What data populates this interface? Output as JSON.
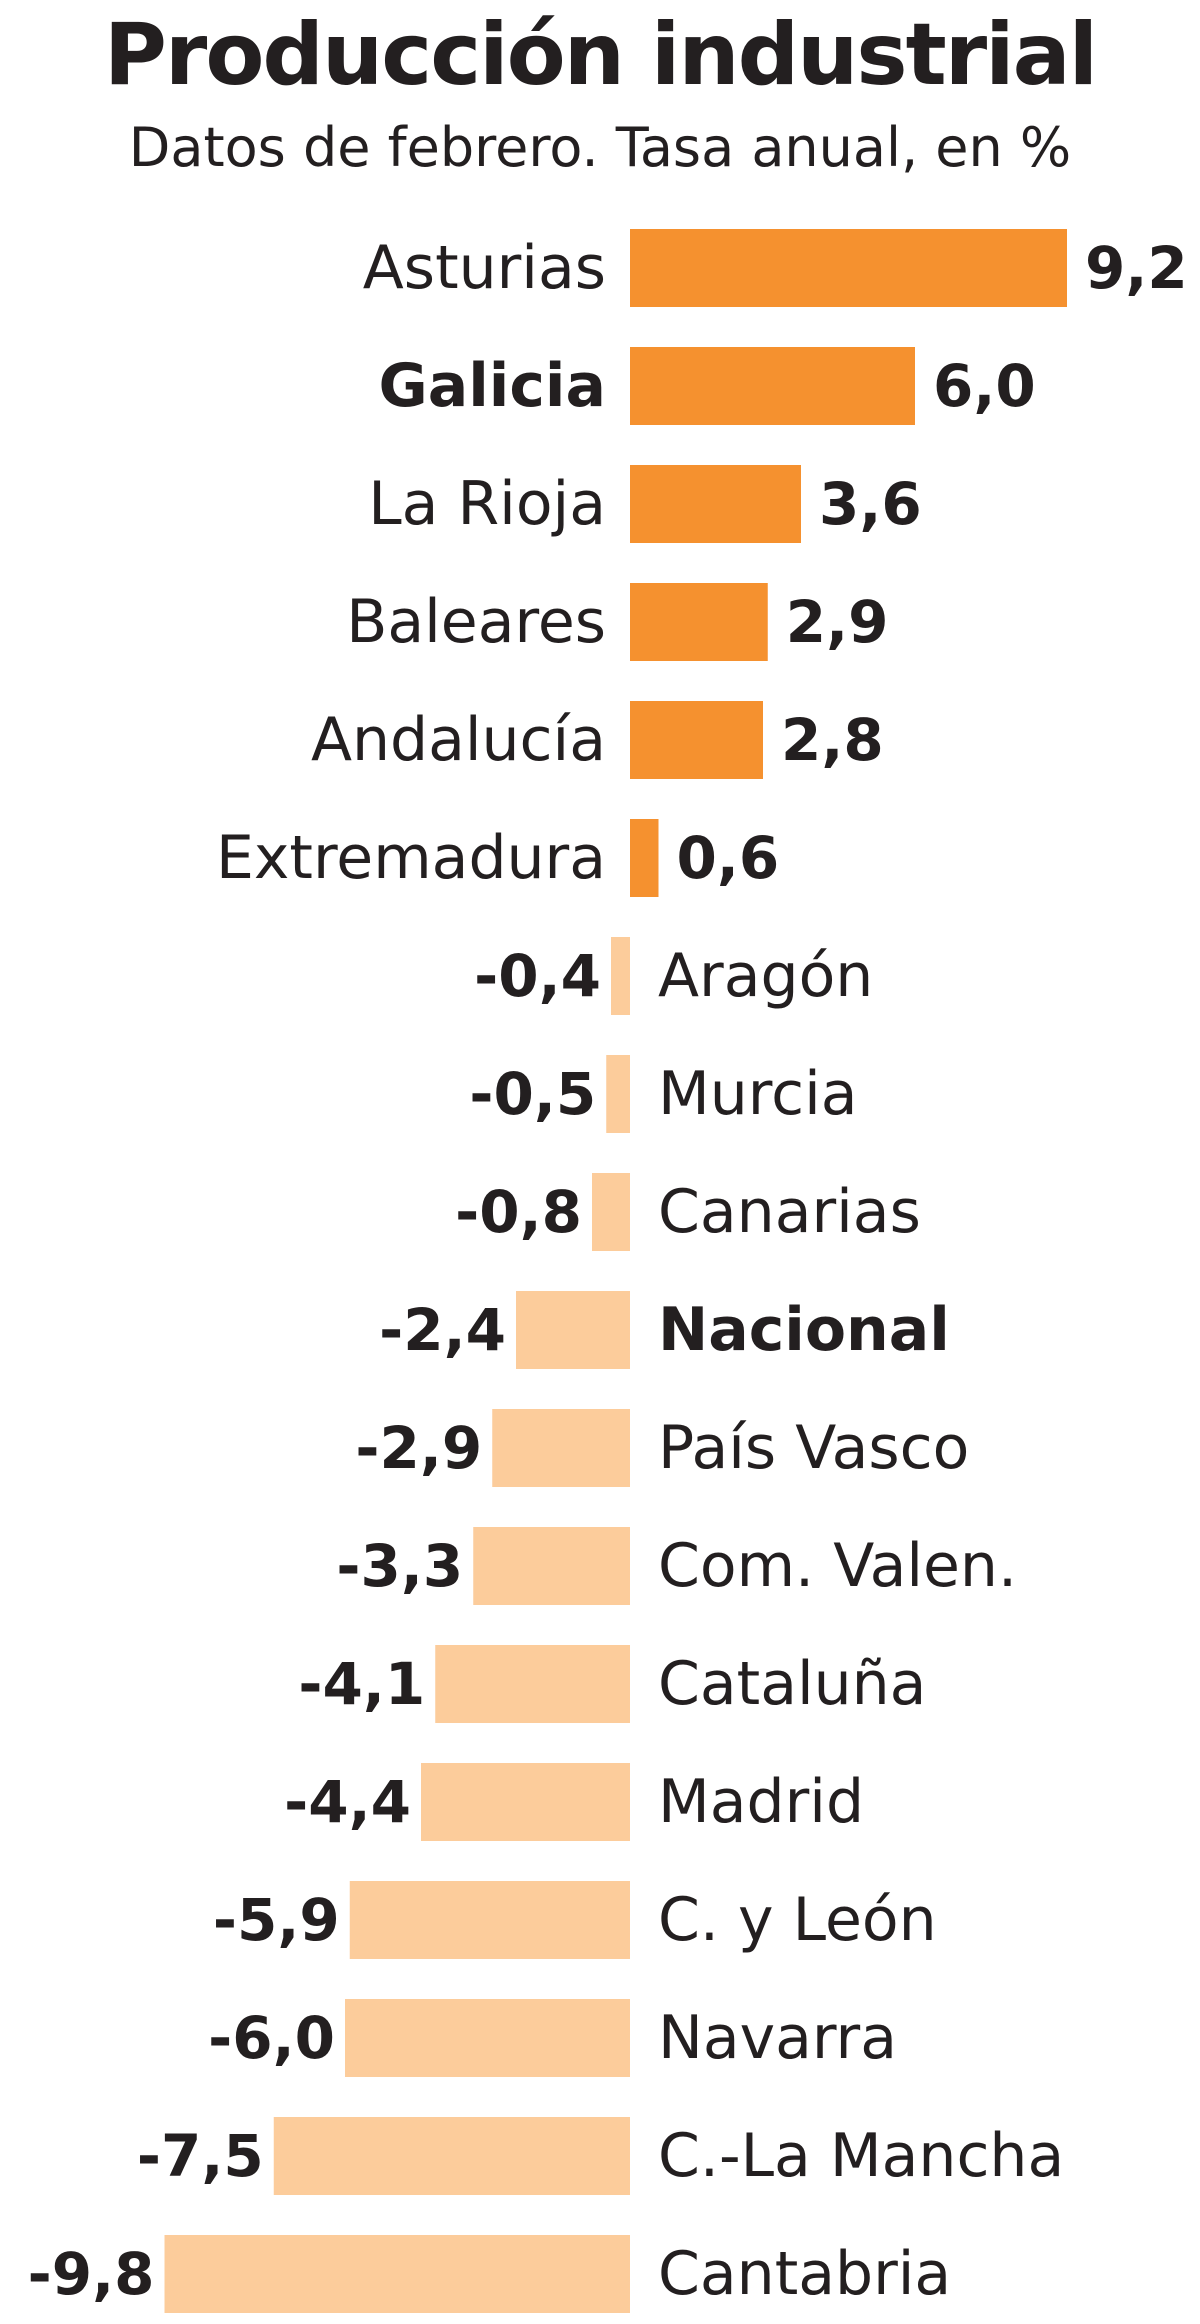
{
  "title": "Producción industrial",
  "subtitle": "Datos de febrero. Tasa anual, en %",
  "colors": {
    "positive": "#f5912f",
    "negative": "#fccc9b",
    "text": "#231f20"
  },
  "chart_data": {
    "type": "bar",
    "orientation": "horizontal",
    "title": "Producción industrial",
    "subtitle": "Datos de febrero. Tasa anual, en %",
    "categories": [
      "Asturias",
      "Galicia",
      "La Rioja",
      "Baleares",
      "Andalucía",
      "Extremadura",
      "Aragón",
      "Murcia",
      "Canarias",
      "Nacional",
      "País Vasco",
      "Com. Valen.",
      "Cataluña",
      "Madrid",
      "C. y León",
      "Navarra",
      "C.-La Mancha",
      "Cantabria"
    ],
    "values": [
      9.2,
      6.0,
      3.6,
      2.9,
      2.8,
      0.6,
      -0.4,
      -0.5,
      -0.8,
      -2.4,
      -2.9,
      -3.3,
      -4.1,
      -4.4,
      -5.9,
      -6.0,
      -7.5,
      -9.8
    ],
    "value_labels": [
      "9,2",
      "6,0",
      "3,6",
      "2,9",
      "2,8",
      "0,6",
      "-0,4",
      "-0,5",
      "-0,8",
      "-2,4",
      "-2,9",
      "-3,3",
      "-4,1",
      "-4,4",
      "-5,9",
      "-6,0",
      "-7,5",
      "-9,8"
    ],
    "bold_categories": [
      "Galicia",
      "Nacional"
    ],
    "grid": false,
    "legend": "none"
  }
}
